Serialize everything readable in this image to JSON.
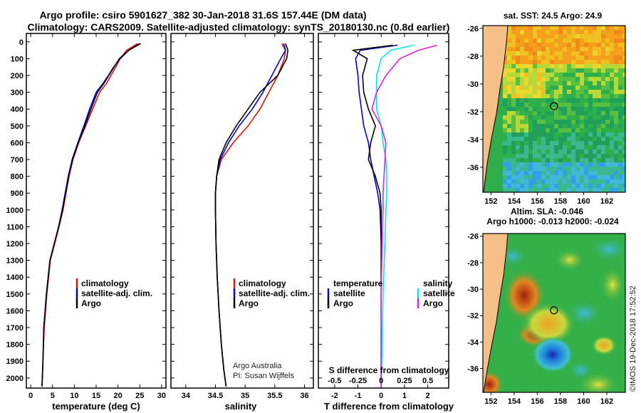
{
  "title": {
    "line1": "Argo profile: csiro 5901627_382 30-Jan-2018 31.6S 157.44E (DM data)",
    "line2": "Climatology: CARS2009. Satellite-adjusted climatology: synTS_20180130.nc (0.8d earlier)"
  },
  "colors": {
    "climatology": "#e01010",
    "satellite": "#0000cc",
    "argo": "#000000",
    "sat_salinity": "#00e8e8",
    "argo_salinity": "#e020e0",
    "land": "#f5bf88",
    "coast": "#16a016"
  },
  "depth_axis": {
    "ticks": [
      0,
      100,
      200,
      300,
      400,
      500,
      600,
      700,
      800,
      900,
      1000,
      1100,
      1200,
      1300,
      1400,
      1500,
      1600,
      1700,
      1800,
      1900,
      2000
    ],
    "tick_labels": [
      "0",
      "100",
      "200",
      "300",
      "400",
      "500",
      "600",
      "700",
      "800",
      "900",
      "1000",
      "1100",
      "1200",
      "1300",
      "1400",
      "1500",
      "1600",
      "1700",
      "1800",
      "1900",
      "2000"
    ],
    "range": [
      -50,
      2060
    ]
  },
  "chart_data": [
    {
      "type": "line",
      "panel": "temperature",
      "xlabel": "temperature (deg C)",
      "xlim": [
        -1,
        31
      ],
      "xticks": [
        0,
        5,
        10,
        15,
        20,
        25,
        30
      ],
      "xtick_labels": [
        "0",
        "5",
        "10",
        "15",
        "20",
        "25",
        "30"
      ],
      "legend": [
        "climatology",
        "satellite-adj. clim.",
        "Argo"
      ],
      "series": [
        {
          "name": "climatology",
          "color": "#e01010",
          "x": [
            24.5,
            22.0,
            20.5,
            19.5,
            18.4,
            17.3,
            15.8,
            14.2,
            12.6,
            11.0,
            9.7,
            8.8,
            8.1,
            7.4,
            6.5,
            5.5,
            4.5,
            3.7,
            3.1,
            2.8,
            2.6
          ],
          "y": [
            10,
            50,
            100,
            150,
            200,
            250,
            300,
            400,
            500,
            600,
            700,
            800,
            900,
            1000,
            1100,
            1200,
            1300,
            1500,
            1700,
            1900,
            2050
          ]
        },
        {
          "name": "satellite-adj. clim.",
          "color": "#0000cc",
          "x": [
            25.2,
            22.5,
            20.5,
            19.0,
            17.8,
            16.5,
            15.0,
            13.5,
            12.2,
            10.8,
            9.5,
            8.6,
            7.9,
            7.2,
            6.4,
            5.4,
            4.4,
            3.6,
            3.0,
            2.8,
            2.6
          ],
          "y": [
            10,
            50,
            100,
            150,
            200,
            250,
            300,
            400,
            500,
            600,
            700,
            800,
            900,
            1000,
            1100,
            1200,
            1300,
            1500,
            1700,
            1900,
            2050
          ]
        },
        {
          "name": "Argo",
          "color": "#000000",
          "x": [
            25.0,
            22.5,
            20.3,
            19.1,
            17.9,
            16.7,
            15.3,
            13.8,
            12.4,
            10.9,
            9.6,
            8.7,
            8.0,
            7.3,
            6.4,
            5.4,
            4.4,
            3.6,
            3.0,
            2.8,
            2.6
          ],
          "y": [
            10,
            50,
            100,
            150,
            200,
            250,
            300,
            400,
            500,
            600,
            700,
            800,
            900,
            1000,
            1100,
            1200,
            1300,
            1500,
            1700,
            1900,
            2050
          ]
        }
      ]
    },
    {
      "type": "line",
      "panel": "salinity",
      "xlabel": "salinity",
      "xlim": [
        33.75,
        36.15
      ],
      "xticks": [
        34,
        34.5,
        35,
        35.5,
        36
      ],
      "xtick_labels": [
        "34",
        "34.5",
        "35",
        "35.5",
        "36"
      ],
      "legend": [
        "climatology",
        "satellite-adj. clim.",
        "Argo"
      ],
      "notes": [
        "Argo Australia",
        "PI: Susan Wijffels"
      ],
      "series": [
        {
          "name": "climatology",
          "color": "#e01010",
          "x": [
            35.62,
            35.68,
            35.66,
            35.55,
            35.4,
            35.25,
            35.05,
            34.8,
            34.6,
            34.52,
            34.5,
            34.5,
            34.51,
            34.53,
            34.56,
            34.6,
            34.64,
            34.68
          ],
          "y": [
            10,
            50,
            100,
            200,
            300,
            400,
            500,
            600,
            700,
            800,
            900,
            1000,
            1200,
            1400,
            1600,
            1800,
            1950,
            2050
          ]
        },
        {
          "name": "satellite-adj. clim.",
          "color": "#0000cc",
          "x": [
            35.65,
            35.68,
            35.6,
            35.45,
            35.3,
            35.12,
            34.9,
            34.72,
            34.58,
            34.52,
            34.5,
            34.5,
            34.51,
            34.53,
            34.56,
            34.6,
            34.64,
            34.68
          ],
          "y": [
            10,
            50,
            100,
            200,
            300,
            400,
            500,
            600,
            700,
            800,
            900,
            1000,
            1200,
            1400,
            1600,
            1800,
            1950,
            2050
          ]
        },
        {
          "name": "Argo",
          "color": "#000000",
          "x": [
            35.68,
            35.72,
            35.7,
            35.55,
            35.25,
            35.05,
            34.85,
            34.68,
            34.56,
            34.52,
            34.5,
            34.5,
            34.51,
            34.53,
            34.56,
            34.6,
            34.64,
            34.68
          ],
          "y": [
            10,
            50,
            100,
            200,
            300,
            400,
            500,
            600,
            700,
            800,
            900,
            1000,
            1200,
            1400,
            1600,
            1800,
            1950,
            2050
          ]
        }
      ]
    },
    {
      "type": "line",
      "panel": "difference",
      "xlabel": "T difference from climatology",
      "xlim": [
        -2.7,
        2.9
      ],
      "xticks": [
        -2,
        -1,
        0,
        1,
        2
      ],
      "xtick_labels": [
        "-2",
        "-1",
        "0",
        "1",
        "2"
      ],
      "secondary_axis": {
        "label": "S difference from climatology",
        "ticks": [
          -0.5,
          -0.25,
          0,
          0.25,
          0.5
        ],
        "tick_labels": [
          "-0.5",
          "-0.25",
          "0",
          "0.25",
          "0.5"
        ]
      },
      "legend_headers": [
        "temperature",
        "salinity"
      ],
      "legend": [
        {
          "group": "temperature",
          "label": "satellite"
        },
        {
          "group": "temperature",
          "label": "Argo"
        },
        {
          "group": "salinity",
          "label": "satellite"
        },
        {
          "group": "salinity",
          "label": "Argo"
        }
      ],
      "series": [
        {
          "name": "temperature satellite",
          "color": "#0000cc",
          "x": [
            0.7,
            -0.9,
            -1.1,
            -1.0,
            -0.95,
            -0.85,
            -0.75,
            -0.55,
            -0.45,
            -0.3,
            -0.15,
            -0.05,
            0.0,
            0.0,
            0.0,
            0.0
          ],
          "y": [
            20,
            50,
            100,
            200,
            300,
            400,
            500,
            600,
            700,
            800,
            900,
            1000,
            1200,
            1500,
            1800,
            2050
          ]
        },
        {
          "name": "temperature Argo",
          "color": "#000000",
          "x": [
            0.5,
            -1.2,
            -0.6,
            -0.8,
            -0.75,
            -0.55,
            -0.25,
            -0.45,
            -0.55,
            -0.25,
            -0.05,
            0.0,
            0.0,
            0.0,
            0.0,
            0.0
          ],
          "y": [
            20,
            50,
            100,
            200,
            300,
            400,
            500,
            600,
            700,
            800,
            900,
            1000,
            1200,
            1500,
            1800,
            2050
          ]
        },
        {
          "name": "salinity satellite",
          "color": "#00e8e8",
          "x": [
            0.35,
            0.1,
            0.0,
            -0.05,
            -0.05,
            -0.05,
            0.0,
            0.02,
            0.05,
            0.06,
            0.06,
            0.05,
            0.04,
            0.02,
            0.01,
            0.0
          ],
          "y": [
            20,
            50,
            100,
            200,
            300,
            400,
            500,
            600,
            700,
            800,
            900,
            1000,
            1200,
            1500,
            1800,
            2050
          ]
        },
        {
          "name": "salinity Argo",
          "color": "#e020e0",
          "x": [
            0.6,
            0.4,
            0.2,
            0.05,
            -0.05,
            -0.1,
            0.0,
            0.05,
            0.04,
            0.03,
            0.02,
            0.02,
            0.01,
            0.0,
            0.0,
            0.0
          ],
          "y": [
            20,
            50,
            100,
            200,
            300,
            400,
            500,
            600,
            700,
            800,
            900,
            1000,
            1200,
            1500,
            1800,
            2050
          ]
        }
      ]
    },
    {
      "type": "heatmap",
      "panel": "sst-map",
      "title": "sat. SST: 24.5 Argo: 24.9",
      "xticks": [
        152,
        154,
        156,
        158,
        160,
        162
      ],
      "xtick_labels": [
        "152",
        "154",
        "156",
        "158",
        "160",
        "162"
      ],
      "yticks": [
        -26,
        -28,
        -30,
        -32,
        -34,
        -36
      ],
      "ytick_labels": [
        "-26",
        "-28",
        "-30",
        "-32",
        "-34",
        "-36"
      ],
      "lon_range": [
        151.3,
        163.6
      ],
      "lat_range": [
        -37.8,
        -25.8
      ],
      "profile_location": [
        157.44,
        -31.6
      ]
    },
    {
      "type": "heatmap",
      "panel": "sla-map",
      "title": "Altim. SLA: -0.046",
      "subtitle": "Argo h1000: -0.013 h2000: -0.024",
      "xticks": [
        152,
        154,
        156,
        158,
        160,
        162
      ],
      "xtick_labels": [
        "152",
        "154",
        "156",
        "158",
        "160",
        "162"
      ],
      "yticks": [
        -26,
        -28,
        -30,
        -32,
        -34,
        -36
      ],
      "ytick_labels": [
        "-26",
        "-28",
        "-30",
        "-32",
        "-34",
        "-36"
      ],
      "lon_range": [
        151.3,
        163.6
      ],
      "lat_range": [
        -37.8,
        -25.8
      ],
      "profile_location": [
        157.44,
        -31.6
      ]
    }
  ],
  "watermark": "©IMOS 19-Dec-2018 17:52:52"
}
